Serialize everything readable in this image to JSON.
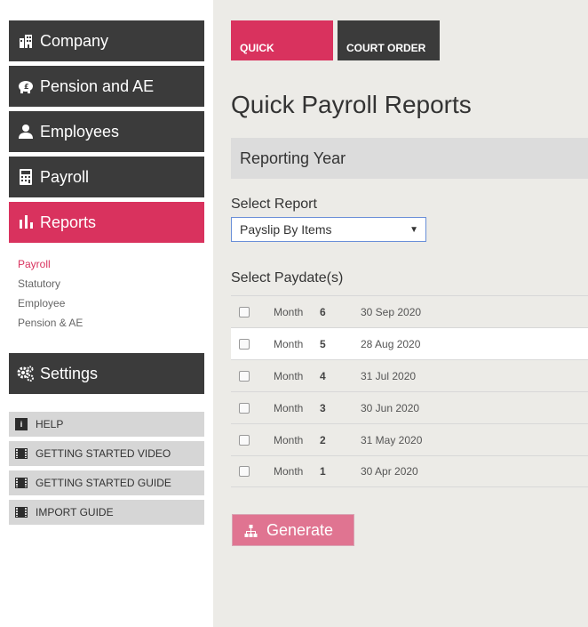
{
  "sidebar": {
    "nav": [
      {
        "label": "Company",
        "icon": "building-icon"
      },
      {
        "label": "Pension and AE",
        "icon": "piggy-bank-icon"
      },
      {
        "label": "Employees",
        "icon": "person-icon"
      },
      {
        "label": "Payroll",
        "icon": "calculator-icon"
      },
      {
        "label": "Reports",
        "icon": "bar-chart-icon"
      },
      {
        "label": "Settings",
        "icon": "gears-icon"
      }
    ],
    "subnav": [
      "Payroll",
      "Statutory",
      "Employee",
      "Pension & AE"
    ],
    "help": [
      {
        "label": "HELP",
        "icon": "info-icon",
        "glyph": "i"
      },
      {
        "label": "GETTING STARTED VIDEO",
        "icon": "film-icon"
      },
      {
        "label": "GETTING STARTED GUIDE",
        "icon": "film-icon"
      },
      {
        "label": "IMPORT GUIDE",
        "icon": "film-icon"
      }
    ]
  },
  "tabs": {
    "quick": "QUICK",
    "court": "COURT ORDER"
  },
  "main": {
    "title": "Quick Payroll Reports",
    "section": "Reporting Year",
    "select_report_label": "Select Report",
    "select_report_value": "Payslip By Items",
    "select_paydate_label": "Select Paydate(s)",
    "rows": [
      {
        "period": "Month",
        "num": "6",
        "date": "30 Sep 2020"
      },
      {
        "period": "Month",
        "num": "5",
        "date": "28 Aug 2020"
      },
      {
        "period": "Month",
        "num": "4",
        "date": "31 Jul 2020"
      },
      {
        "period": "Month",
        "num": "3",
        "date": "30 Jun 2020"
      },
      {
        "period": "Month",
        "num": "2",
        "date": "31 May 2020"
      },
      {
        "period": "Month",
        "num": "1",
        "date": "30 Apr 2020"
      }
    ],
    "generate": "Generate"
  },
  "colors": {
    "accent": "#d9325e",
    "dark": "#3b3b3b",
    "main_bg": "#ecebe7",
    "generate": "#e07491"
  }
}
